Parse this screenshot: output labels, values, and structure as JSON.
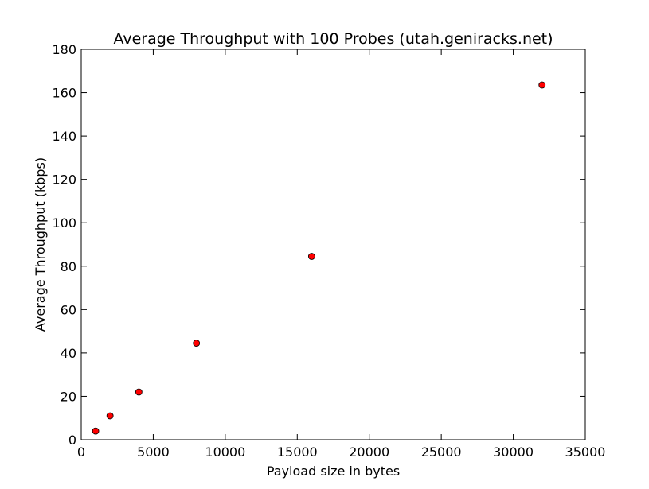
{
  "chart_data": {
    "type": "scatter",
    "title": "Average Throughput with 100 Probes (utah.geniracks.net)",
    "xlabel": "Payload size in bytes",
    "ylabel": "Average Throughput (kbps)",
    "xlim": [
      0,
      35000
    ],
    "ylim": [
      0,
      180
    ],
    "x_ticks": [
      0,
      5000,
      10000,
      15000,
      20000,
      25000,
      30000,
      35000
    ],
    "y_ticks": [
      0,
      20,
      40,
      60,
      80,
      100,
      120,
      140,
      160,
      180
    ],
    "grid": false,
    "series": [
      {
        "x": [
          1000,
          2000,
          4000,
          8000,
          16000,
          32000
        ],
        "y": [
          4,
          11,
          22,
          44.5,
          84.5,
          163.5
        ]
      }
    ],
    "colors": {
      "marker_fill": "#ff0000",
      "marker_edge": "#000000",
      "axes": "#000000",
      "background": "#ffffff"
    }
  }
}
